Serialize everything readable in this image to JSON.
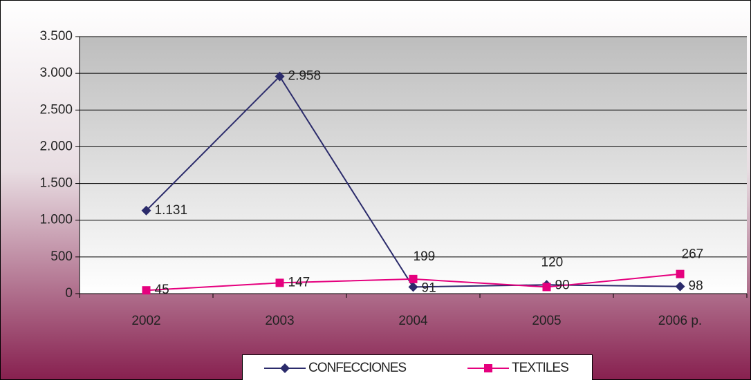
{
  "chart_data": {
    "type": "line",
    "categories": [
      "2002",
      "2003",
      "2004",
      "2005",
      "2006 p."
    ],
    "series": [
      {
        "name": "CONFECCIONES",
        "color": "#2b2b6b",
        "marker": "diamond",
        "values": [
          1131,
          2958,
          91,
          120,
          98
        ],
        "value_labels": [
          "1.131",
          "2.958",
          "91",
          "120",
          "98"
        ]
      },
      {
        "name": "TEXTILES",
        "color": "#e5007e",
        "marker": "square",
        "values": [
          45,
          147,
          199,
          90,
          267
        ]
      }
    ],
    "ylim": [
      0,
      3500
    ],
    "yticks": [
      0,
      500,
      {
        "value": 1000,
        "label": "1.000"
      },
      {
        "value": 1500,
        "label": "1.500"
      },
      {
        "value": 2000,
        "label": "2.000"
      },
      {
        "value": 2500,
        "label": "2.500"
      },
      {
        "value": 3000,
        "label": "3.000"
      },
      {
        "value": 3500,
        "label": "3.500"
      }
    ],
    "grid": true,
    "legend": "bottom"
  }
}
